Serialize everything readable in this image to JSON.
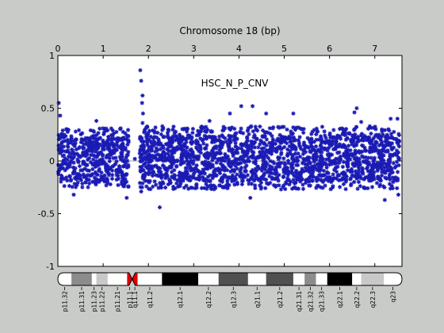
{
  "colors": {
    "figure_bg": "#c8cbc8",
    "axes_bg": "#ffffff",
    "marker": "#1a1ab4",
    "zero_line": "#a0a0a0",
    "centromere": "#e00000"
  },
  "chart_data": {
    "type": "scatter",
    "title": "Chromosome 18 (bp)",
    "annotation": "HSC_N_P_CNV",
    "xaxis": {
      "position": "top",
      "min": 0,
      "max": 7.6,
      "ticks": [
        "0",
        "1",
        "2",
        "3",
        "4",
        "5",
        "6",
        "7"
      ]
    },
    "yaxis": {
      "min": -1,
      "max": 1,
      "ticks": [
        "1",
        "0.5",
        "0",
        "-0.5",
        "-1"
      ]
    },
    "reference_line": 0,
    "series": [
      {
        "marker": "asterisk",
        "color": "#1a1ab4",
        "segments": [
          {
            "x_range": [
              0.0,
              1.57
            ],
            "band_lo": -0.17,
            "band_hi": 0.22,
            "extremes": [
              [
                0.02,
                0.55
              ],
              [
                0.05,
                0.43
              ],
              [
                0.35,
                -0.32
              ],
              [
                0.85,
                0.38
              ],
              [
                1.52,
                -0.35
              ]
            ]
          },
          {
            "x_range": [
              1.8,
              7.55
            ],
            "band_lo": -0.19,
            "band_hi": 0.24,
            "extremes": [
              [
                1.82,
                0.86
              ],
              [
                1.84,
                0.76
              ],
              [
                1.87,
                0.62
              ],
              [
                1.86,
                0.55
              ],
              [
                1.88,
                0.45
              ],
              [
                1.87,
                0.36
              ],
              [
                1.84,
                -0.29
              ],
              [
                3.35,
                0.38
              ],
              [
                3.8,
                0.45
              ],
              [
                4.05,
                0.52
              ],
              [
                4.3,
                0.52
              ],
              [
                4.6,
                0.45
              ],
              [
                5.2,
                0.45
              ],
              [
                6.6,
                0.5
              ],
              [
                6.55,
                0.46
              ],
              [
                6.7,
                0.37
              ],
              [
                2.25,
                -0.44
              ],
              [
                4.25,
                -0.35
              ],
              [
                7.22,
                -0.37
              ],
              [
                7.35,
                0.4
              ],
              [
                7.5,
                0.4
              ],
              [
                7.52,
                -0.32
              ]
            ]
          }
        ],
        "isolated_points": [
          [
            1.7,
            0.02
          ]
        ]
      }
    ]
  },
  "ideogram": {
    "bands": [
      {
        "label": "p11.32",
        "start": 0.0,
        "end": 0.3,
        "stain": "white"
      },
      {
        "label": "p11.31",
        "start": 0.3,
        "end": 0.75,
        "stain": "gray50"
      },
      {
        "label": "p11.23",
        "start": 0.75,
        "end": 0.85,
        "stain": "white"
      },
      {
        "label": "p11.22",
        "start": 0.85,
        "end": 1.1,
        "stain": "gray25"
      },
      {
        "label": "p11.21",
        "start": 1.1,
        "end": 1.53,
        "stain": "white"
      },
      {
        "label": "p11.1",
        "start": 1.53,
        "end": 1.64,
        "stain": "acen"
      },
      {
        "label": "q11.1",
        "start": 1.64,
        "end": 1.76,
        "stain": "acen"
      },
      {
        "label": "q11.2",
        "start": 1.76,
        "end": 2.3,
        "stain": "white"
      },
      {
        "label": "q12.1",
        "start": 2.3,
        "end": 3.1,
        "stain": "black"
      },
      {
        "label": "q12.2",
        "start": 3.1,
        "end": 3.55,
        "stain": "white"
      },
      {
        "label": "q12.3",
        "start": 3.55,
        "end": 4.2,
        "stain": "gray75"
      },
      {
        "label": "q21.1",
        "start": 4.2,
        "end": 4.6,
        "stain": "white"
      },
      {
        "label": "q21.2",
        "start": 4.6,
        "end": 5.2,
        "stain": "gray75"
      },
      {
        "label": "q21.31",
        "start": 5.2,
        "end": 5.45,
        "stain": "white"
      },
      {
        "label": "q21.32",
        "start": 5.45,
        "end": 5.7,
        "stain": "gray50"
      },
      {
        "label": "q21.33",
        "start": 5.7,
        "end": 5.95,
        "stain": "white"
      },
      {
        "label": "q22.1",
        "start": 5.95,
        "end": 6.5,
        "stain": "black"
      },
      {
        "label": "q22.2",
        "start": 6.5,
        "end": 6.7,
        "stain": "white"
      },
      {
        "label": "q22.3",
        "start": 6.7,
        "end": 7.2,
        "stain": "gray25"
      },
      {
        "label": "q23",
        "start": 7.2,
        "end": 7.6,
        "stain": "white"
      }
    ]
  }
}
